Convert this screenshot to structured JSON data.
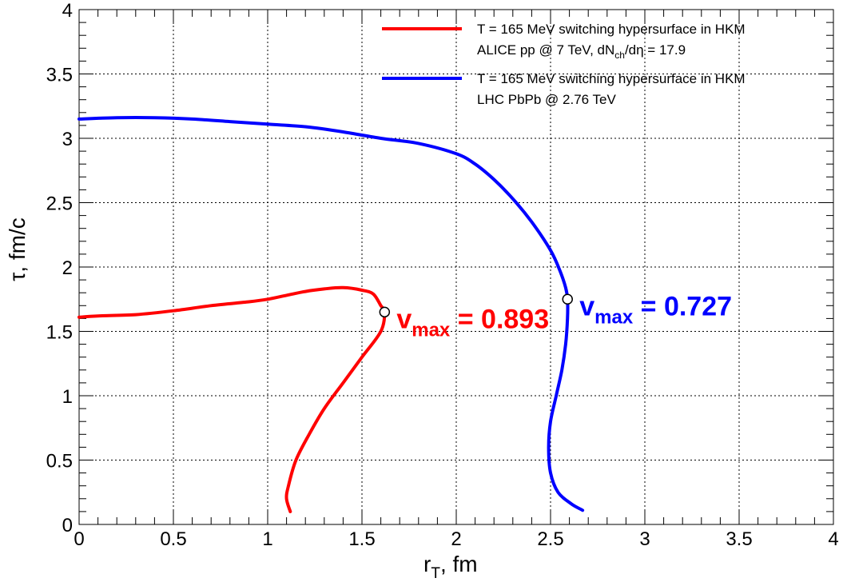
{
  "chart_data": {
    "type": "line",
    "xlabel": "r_T, fm",
    "xlabel_main": "r",
    "xlabel_sub": "T",
    "xlabel_rest": ", fm",
    "ylabel": "τ, fm/c",
    "xlim": [
      0,
      4
    ],
    "ylim": [
      0,
      4
    ],
    "grid": true,
    "legend_position": "top-right",
    "x_ticks": [
      "0",
      "0.5",
      "1",
      "1.5",
      "2",
      "2.5",
      "3",
      "3.5",
      "4"
    ],
    "y_ticks": [
      "0",
      "0.5",
      "1",
      "1.5",
      "2",
      "2.5",
      "3",
      "3.5",
      "4"
    ],
    "series": [
      {
        "name": "T = 165 MeV switching hypersurface in HKM ALICE pp @ 7 TeV, dNch/dη = 17.9",
        "legend_line1": "T = 165 MeV switching hypersurface in HKM",
        "legend_line2_a": "ALICE pp @ 7 TeV, dN",
        "legend_line2_sub": "ch",
        "legend_line2_b": "/dη = 17.9",
        "color": "#ff0000",
        "points": [
          [
            0.0,
            1.61
          ],
          [
            0.1,
            1.62
          ],
          [
            0.3,
            1.63
          ],
          [
            0.5,
            1.66
          ],
          [
            0.7,
            1.7
          ],
          [
            0.9,
            1.73
          ],
          [
            1.0,
            1.75
          ],
          [
            1.1,
            1.78
          ],
          [
            1.2,
            1.81
          ],
          [
            1.3,
            1.83
          ],
          [
            1.4,
            1.84
          ],
          [
            1.5,
            1.82
          ],
          [
            1.56,
            1.79
          ],
          [
            1.6,
            1.7
          ],
          [
            1.62,
            1.65
          ],
          [
            1.6,
            1.5
          ],
          [
            1.5,
            1.3
          ],
          [
            1.4,
            1.1
          ],
          [
            1.3,
            0.9
          ],
          [
            1.22,
            0.7
          ],
          [
            1.15,
            0.5
          ],
          [
            1.11,
            0.3
          ],
          [
            1.1,
            0.2
          ],
          [
            1.12,
            0.1
          ]
        ]
      },
      {
        "name": "T = 165 MeV switching hypersurface in HKM LHC PbPb @ 2.76 TeV",
        "legend_line1": "T = 165 MeV switching hypersurface in HKM",
        "legend_line2_a": "LHC PbPb @ 2.76 TeV",
        "legend_line2_sub": "",
        "legend_line2_b": "",
        "color": "#0000ff",
        "points": [
          [
            0.0,
            3.15
          ],
          [
            0.2,
            3.16
          ],
          [
            0.4,
            3.16
          ],
          [
            0.6,
            3.15
          ],
          [
            0.8,
            3.13
          ],
          [
            1.0,
            3.11
          ],
          [
            1.2,
            3.09
          ],
          [
            1.4,
            3.05
          ],
          [
            1.6,
            3.0
          ],
          [
            1.8,
            2.96
          ],
          [
            2.0,
            2.88
          ],
          [
            2.1,
            2.8
          ],
          [
            2.2,
            2.68
          ],
          [
            2.3,
            2.53
          ],
          [
            2.4,
            2.35
          ],
          [
            2.5,
            2.13
          ],
          [
            2.55,
            1.97
          ],
          [
            2.58,
            1.84
          ],
          [
            2.59,
            1.75
          ],
          [
            2.59,
            1.6
          ],
          [
            2.58,
            1.4
          ],
          [
            2.56,
            1.2
          ],
          [
            2.53,
            1.0
          ],
          [
            2.5,
            0.8
          ],
          [
            2.49,
            0.6
          ],
          [
            2.5,
            0.4
          ],
          [
            2.54,
            0.25
          ],
          [
            2.61,
            0.16
          ],
          [
            2.67,
            0.11
          ]
        ]
      }
    ],
    "markers": [
      {
        "x": 1.62,
        "y": 1.65,
        "label_main": "v",
        "label_sub": "max",
        "label_value": " = 0.893",
        "color": "#ff0000"
      },
      {
        "x": 2.59,
        "y": 1.75,
        "label_main": "v",
        "label_sub": "max",
        "label_value": " = 0.727",
        "color": "#0000ff"
      }
    ]
  }
}
